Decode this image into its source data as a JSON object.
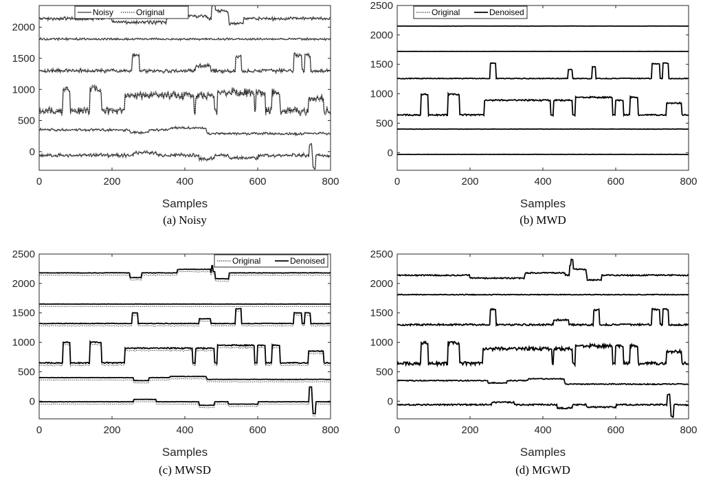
{
  "chart_data": [
    {
      "panel": "a",
      "caption": "(a)  Noisy",
      "type": "line",
      "xlabel": "Samples",
      "ylabel": "",
      "xlim": [
        0,
        800
      ],
      "ylim": [
        -300,
        2350
      ],
      "xticks": [
        "0",
        "200",
        "400",
        "600",
        "800"
      ],
      "yticks": [
        "0",
        "500",
        "1000",
        "1500",
        "2000"
      ],
      "legend_position": "top-center",
      "series": [
        {
          "name": "Noisy",
          "color": "#6e6e6e",
          "style": "solid"
        },
        {
          "name": "Original",
          "color": "#000000",
          "style": "dotted"
        }
      ],
      "traces": [
        {
          "baseline": 2140,
          "noise": 18,
          "segments": [
            [
              200,
              350,
              -60
            ],
            [
              350,
              460,
              40
            ],
            [
              478,
              520,
              120
            ],
            [
              520,
              560,
              -80
            ]
          ],
          "spikes": [
            [
              478,
              180
            ]
          ]
        },
        {
          "baseline": 1810,
          "noise": 12,
          "segments": [],
          "spikes": []
        },
        {
          "baseline": 1300,
          "noise": 22,
          "segments": [
            [
              255,
              275,
              250
            ],
            [
              430,
              470,
              80
            ],
            [
              540,
              555,
              230
            ],
            [
              700,
              720,
              250
            ],
            [
              730,
              745,
              250
            ]
          ],
          "spikes": []
        },
        {
          "baseline": 650,
          "noise": 45,
          "segments": [
            [
              65,
              85,
              350
            ],
            [
              140,
              170,
              350
            ],
            [
              235,
              425,
              250
            ],
            [
              430,
              480,
              250
            ],
            [
              490,
              590,
              300
            ],
            [
              595,
              620,
              300
            ],
            [
              640,
              660,
              300
            ],
            [
              740,
              780,
              200
            ]
          ],
          "spikes": []
        },
        {
          "baseline": 350,
          "noise": 14,
          "segments": [
            [
              250,
              300,
              -40
            ],
            [
              360,
              460,
              30
            ],
            [
              460,
              800,
              -60
            ]
          ],
          "spikes": []
        },
        {
          "baseline": -60,
          "noise": 20,
          "segments": [
            [
              260,
              320,
              40
            ],
            [
              440,
              480,
              -60
            ],
            [
              520,
              600,
              -40
            ]
          ],
          "spikes": [
            [
              745,
              170
            ],
            [
              755,
              -200
            ]
          ]
        }
      ]
    },
    {
      "panel": "b",
      "caption": "(b)  MWD",
      "type": "line",
      "xlabel": "Samples",
      "ylabel": "",
      "xlim": [
        0,
        800
      ],
      "ylim": [
        -300,
        2500
      ],
      "xticks": [
        "0",
        "200",
        "400",
        "600",
        "800"
      ],
      "yticks": [
        "0",
        "500",
        "1000",
        "1500",
        "2000",
        "2500"
      ],
      "legend_position": "top-left",
      "series": [
        {
          "name": "Original",
          "color": "#000000",
          "style": "dotted"
        },
        {
          "name": "Denoised",
          "color": "#000000",
          "style": "solid"
        }
      ],
      "traces": [
        {
          "baseline": 2150,
          "noise": 2,
          "segments": [],
          "spikes": []
        },
        {
          "baseline": 1720,
          "noise": 1,
          "segments": [],
          "spikes": []
        },
        {
          "baseline": 1260,
          "noise": 6,
          "segments": [
            [
              255,
              270,
              260
            ],
            [
              470,
              480,
              150
            ],
            [
              535,
              545,
              200
            ],
            [
              700,
              720,
              250
            ],
            [
              730,
              745,
              260
            ]
          ],
          "spikes": []
        },
        {
          "baseline": 640,
          "noise": 12,
          "segments": [
            [
              65,
              85,
              350
            ],
            [
              140,
              170,
              350
            ],
            [
              240,
              420,
              250
            ],
            [
              430,
              480,
              250
            ],
            [
              490,
              590,
              300
            ],
            [
              600,
              620,
              250
            ],
            [
              640,
              660,
              300
            ],
            [
              740,
              780,
              200
            ]
          ],
          "spikes": []
        },
        {
          "baseline": 400,
          "noise": 3,
          "segments": [],
          "spikes": []
        },
        {
          "baseline": -30,
          "noise": 2,
          "segments": [],
          "spikes": []
        }
      ]
    },
    {
      "panel": "c",
      "caption": "(c)  MWSD",
      "type": "line",
      "xlabel": "Samples",
      "ylabel": "",
      "xlim": [
        0,
        800
      ],
      "ylim": [
        -300,
        2500
      ],
      "xticks": [
        "0",
        "200",
        "400",
        "600",
        "800"
      ],
      "yticks": [
        "0",
        "500",
        "1000",
        "1500",
        "2000",
        "2500"
      ],
      "legend_position": "top-right",
      "series": [
        {
          "name": "Original",
          "color": "#000000",
          "style": "dotted"
        },
        {
          "name": "Denoised",
          "color": "#000000",
          "style": "solid"
        }
      ],
      "traces": [
        {
          "baseline": 2180,
          "noise": 4,
          "segments": [
            [
              250,
              280,
              -80
            ],
            [
              380,
              470,
              60
            ],
            [
              478,
              520,
              -100
            ]
          ],
          "spikes": [
            [
              478,
              120
            ]
          ]
        },
        {
          "baseline": 1650,
          "noise": 2,
          "segments": [],
          "spikes": []
        },
        {
          "baseline": 1320,
          "noise": 5,
          "segments": [
            [
              255,
              270,
              180
            ],
            [
              440,
              470,
              80
            ],
            [
              540,
              555,
              250
            ],
            [
              700,
              720,
              180
            ],
            [
              730,
              745,
              180
            ]
          ],
          "spikes": []
        },
        {
          "baseline": 650,
          "noise": 10,
          "segments": [
            [
              65,
              85,
              350
            ],
            [
              140,
              170,
              350
            ],
            [
              235,
              420,
              250
            ],
            [
              430,
              480,
              250
            ],
            [
              490,
              590,
              300
            ],
            [
              600,
              620,
              300
            ],
            [
              640,
              660,
              300
            ],
            [
              740,
              780,
              200
            ]
          ],
          "spikes": []
        },
        {
          "baseline": 400,
          "noise": 3,
          "segments": [
            [
              260,
              300,
              -50
            ],
            [
              360,
              460,
              20
            ],
            [
              460,
              800,
              -30
            ]
          ],
          "spikes": []
        },
        {
          "baseline": -10,
          "noise": 3,
          "segments": [
            [
              260,
              320,
              40
            ],
            [
              440,
              480,
              -60
            ],
            [
              520,
              600,
              -40
            ]
          ],
          "spikes": [
            [
              745,
              250
            ],
            [
              755,
              -200
            ]
          ]
        }
      ]
    },
    {
      "panel": "d",
      "caption": "(d)  MGWD",
      "type": "line",
      "xlabel": "Samples",
      "ylabel": "",
      "xlim": [
        0,
        800
      ],
      "ylim": [
        -300,
        2500
      ],
      "xticks": [
        "0",
        "200",
        "400",
        "600",
        "800"
      ],
      "yticks": [
        "0",
        "500",
        "1000",
        "1500",
        "2000",
        "2500"
      ],
      "legend_position": "none",
      "series": [
        {
          "name": "",
          "color": "#000000",
          "style": "solid"
        }
      ],
      "traces": [
        {
          "baseline": 2140,
          "noise": 10,
          "segments": [
            [
              200,
              350,
              -50
            ],
            [
              350,
              460,
              40
            ],
            [
              478,
              520,
              100
            ],
            [
              520,
              560,
              -80
            ]
          ],
          "spikes": [
            [
              478,
              160
            ]
          ]
        },
        {
          "baseline": 1810,
          "noise": 6,
          "segments": [],
          "spikes": []
        },
        {
          "baseline": 1300,
          "noise": 14,
          "segments": [
            [
              255,
              270,
              260
            ],
            [
              430,
              470,
              80
            ],
            [
              540,
              555,
              250
            ],
            [
              700,
              720,
              260
            ],
            [
              730,
              745,
              260
            ]
          ],
          "spikes": []
        },
        {
          "baseline": 640,
          "noise": 28,
          "segments": [
            [
              65,
              85,
              350
            ],
            [
              140,
              170,
              350
            ],
            [
              235,
              425,
              250
            ],
            [
              430,
              480,
              250
            ],
            [
              490,
              590,
              300
            ],
            [
              600,
              620,
              300
            ],
            [
              640,
              660,
              300
            ],
            [
              740,
              780,
              200
            ]
          ],
          "spikes": []
        },
        {
          "baseline": 350,
          "noise": 8,
          "segments": [
            [
              250,
              300,
              -40
            ],
            [
              360,
              460,
              30
            ],
            [
              460,
              800,
              -60
            ]
          ],
          "spikes": []
        },
        {
          "baseline": -60,
          "noise": 12,
          "segments": [
            [
              260,
              320,
              40
            ],
            [
              440,
              480,
              -60
            ],
            [
              520,
              600,
              -40
            ]
          ],
          "spikes": [
            [
              745,
              170
            ],
            [
              755,
              -200
            ]
          ]
        }
      ]
    }
  ]
}
